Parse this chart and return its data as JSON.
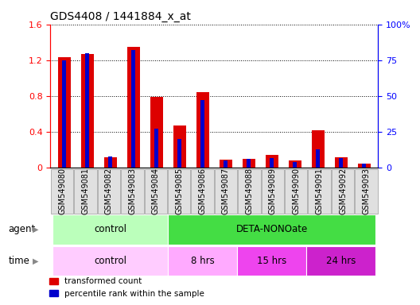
{
  "title": "GDS4408 / 1441884_x_at",
  "samples": [
    "GSM549080",
    "GSM549081",
    "GSM549082",
    "GSM549083",
    "GSM549084",
    "GSM549085",
    "GSM549086",
    "GSM549087",
    "GSM549088",
    "GSM549089",
    "GSM549090",
    "GSM549091",
    "GSM549092",
    "GSM549093"
  ],
  "transformed_count": [
    1.23,
    1.27,
    0.12,
    1.35,
    0.79,
    0.47,
    0.84,
    0.09,
    0.1,
    0.14,
    0.08,
    0.42,
    0.12,
    0.05
  ],
  "percentile_rank": [
    75,
    80,
    8,
    82,
    27,
    20,
    47,
    5,
    6,
    7,
    4,
    13,
    7,
    3
  ],
  "ylim_left": [
    0,
    1.6
  ],
  "ylim_right": [
    0,
    100
  ],
  "yticks_left": [
    0,
    0.4,
    0.8,
    1.2,
    1.6
  ],
  "yticks_right": [
    0,
    25,
    50,
    75,
    100
  ],
  "ytick_labels_right": [
    "0",
    "25",
    "50",
    "75",
    "100%"
  ],
  "bar_color_red": "#dd0000",
  "bar_color_blue": "#0000cc",
  "agent_groups": [
    {
      "label": "control",
      "start": 0,
      "end": 4,
      "color": "#bbffbb"
    },
    {
      "label": "DETA-NONOate",
      "start": 5,
      "end": 13,
      "color": "#44dd44"
    }
  ],
  "time_groups": [
    {
      "label": "control",
      "start": 0,
      "end": 4,
      "color": "#ffccff"
    },
    {
      "label": "8 hrs",
      "start": 5,
      "end": 7,
      "color": "#ffaaff"
    },
    {
      "label": "15 hrs",
      "start": 8,
      "end": 10,
      "color": "#ee44ee"
    },
    {
      "label": "24 hrs",
      "start": 11,
      "end": 13,
      "color": "#cc22cc"
    }
  ],
  "legend_red_label": "transformed count",
  "legend_blue_label": "percentile rank within the sample",
  "bar_width": 0.55,
  "blue_bar_width": 0.18,
  "tick_label_size": 7,
  "agent_label": "agent",
  "time_label": "time"
}
